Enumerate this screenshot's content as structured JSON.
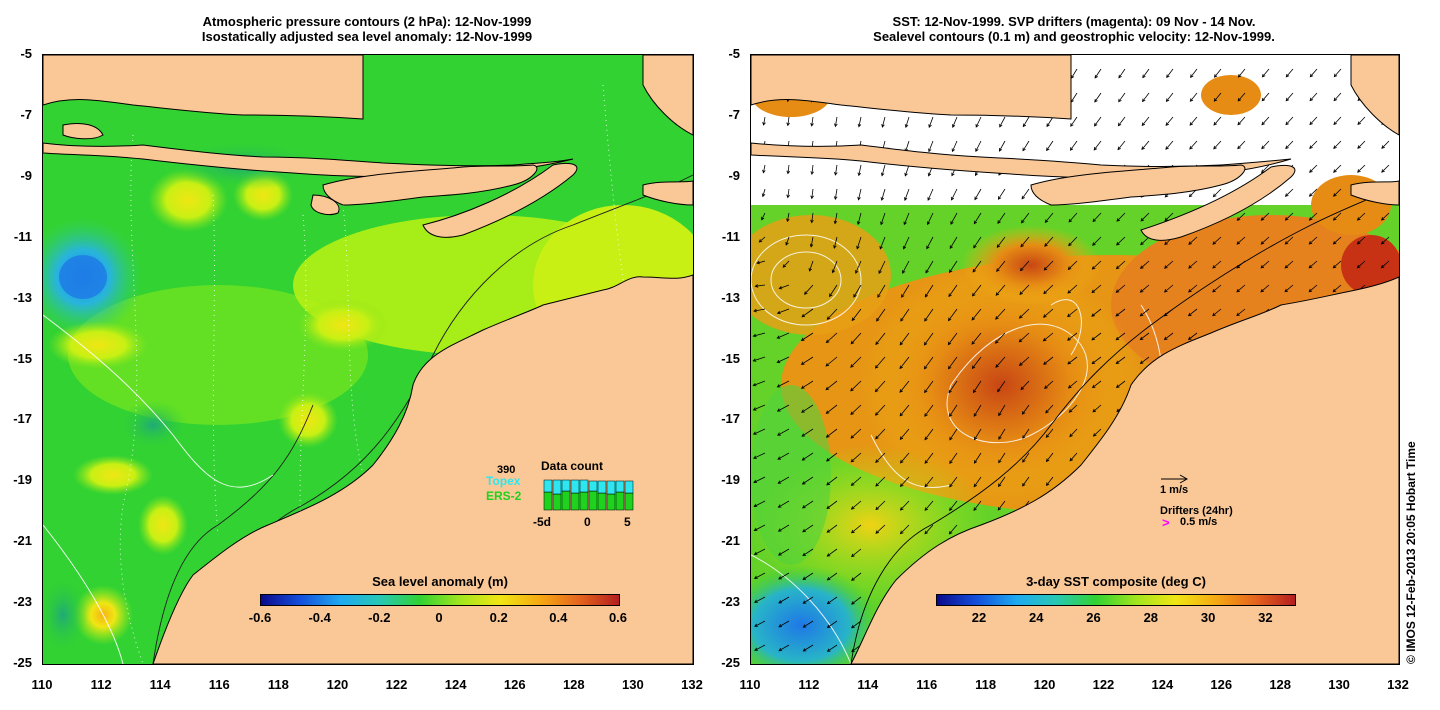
{
  "left_panel": {
    "title_line1": "Atmospheric pressure contours (2 hPa): 12-Nov-1999",
    "title_line2": "Isostatically adjusted sea level anomaly: 12-Nov-1999",
    "y_ticks": [
      "-5",
      "-7",
      "-9",
      "-11",
      "-13",
      "-15",
      "-17",
      "-19",
      "-21",
      "-23",
      "-25"
    ],
    "x_ticks": [
      "110",
      "112",
      "114",
      "116",
      "118",
      "120",
      "122",
      "124",
      "126",
      "128",
      "130",
      "132"
    ],
    "colorbar": {
      "title": "Sea level anomaly (m)",
      "labels": [
        "-0.6",
        "-0.4",
        "-0.2",
        "0",
        "0.2",
        "0.4",
        "0.6"
      ],
      "range": [
        -0.6,
        0.6
      ]
    },
    "data_count": {
      "title": "Data count",
      "count": "390",
      "topex_label": "Topex",
      "ers_label": "ERS-2",
      "x_labels": [
        "-5d",
        "0",
        "5"
      ],
      "topex_color": "#2ee6f0",
      "ers_color": "#1ed21e"
    }
  },
  "right_panel": {
    "title_line1": "SST: 12-Nov-1999. SVP drifters (magenta): 09 Nov - 14 Nov.",
    "title_line2": "Sealevel contours (0.1 m) and geostrophic velocity: 12-Nov-1999.",
    "y_ticks": [
      "-5",
      "-7",
      "-9",
      "-11",
      "-13",
      "-15",
      "-17",
      "-19",
      "-21",
      "-23",
      "-25"
    ],
    "x_ticks": [
      "110",
      "112",
      "114",
      "116",
      "118",
      "120",
      "122",
      "124",
      "126",
      "128",
      "130",
      "132"
    ],
    "colorbar": {
      "title": "3-day SST composite (deg C)",
      "labels": [
        "22",
        "24",
        "26",
        "28",
        "30",
        "32"
      ],
      "range": [
        20.5,
        33
      ]
    },
    "velocity_scale_label": "1 m/s",
    "drifters_label": "Drifters (24hr)",
    "drifters_scale_label": "0.5 m/s",
    "drifter_color": "#ff00ff"
  },
  "credit": "© IMOS 12-Feb-2013 20:05 Hobart Time",
  "colors": {
    "land": "#fac896",
    "ocean_green": "#32d232",
    "sst_orange": "#e68c14"
  }
}
